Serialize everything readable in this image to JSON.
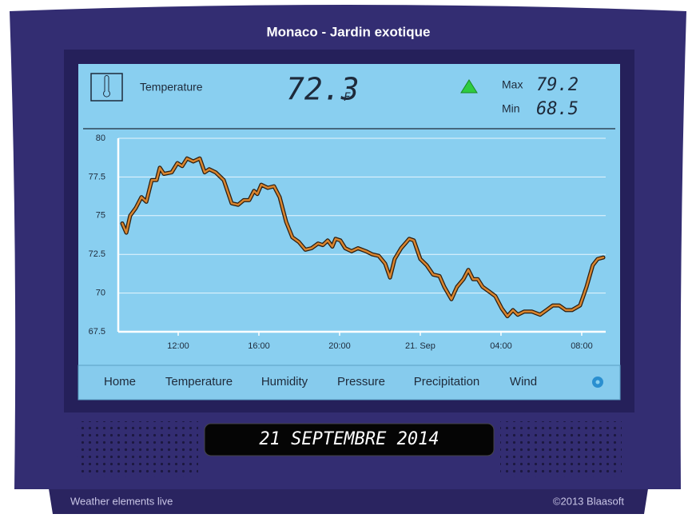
{
  "header": {
    "title": "Monaco - Jardin exotique"
  },
  "reading": {
    "label": "Temperature",
    "value": "72.3",
    "unit": "F",
    "max_label": "Max",
    "max": "79.2",
    "min_label": "Min",
    "min": "68.5"
  },
  "chart_data": {
    "type": "line",
    "x": [
      9.23,
      9.43,
      9.62,
      9.9,
      10.18,
      10.42,
      10.69,
      10.93,
      11.09,
      11.29,
      11.68,
      11.96,
      12.2,
      12.44,
      12.75,
      13.07,
      13.31,
      13.54,
      13.86,
      14.26,
      14.65,
      14.97,
      15.25,
      15.52,
      15.76,
      15.92,
      16.12,
      16.44,
      16.75,
      17.03,
      17.35,
      17.66,
      17.98,
      18.3,
      18.61,
      18.93,
      19.17,
      19.41,
      19.64,
      19.8,
      20.04,
      20.28,
      20.59,
      20.91,
      21.31,
      21.62,
      21.94,
      22.26,
      22.5,
      22.73,
      23.05,
      23.45,
      23.68,
      24.0,
      24.32,
      24.63,
      24.95,
      25.19,
      25.54,
      25.82,
      26.14,
      26.38,
      26.61,
      26.85,
      27.09,
      27.41,
      27.72,
      28.04,
      28.32,
      28.59,
      28.83,
      29.15,
      29.54,
      29.94,
      30.26,
      30.57,
      30.89,
      31.21,
      31.52,
      31.92,
      32.24,
      32.55,
      32.79,
      33.07
    ],
    "series": [
      {
        "color": "#d9852f",
        "values": [
          74.5,
          73.9,
          75.0,
          75.5,
          76.2,
          75.9,
          77.3,
          77.3,
          78.1,
          77.7,
          77.8,
          78.4,
          78.2,
          78.7,
          78.5,
          78.7,
          77.8,
          78.0,
          77.8,
          77.3,
          75.8,
          75.7,
          76.0,
          76.0,
          76.6,
          76.4,
          77.0,
          76.8,
          76.9,
          76.2,
          74.6,
          73.6,
          73.3,
          72.8,
          72.9,
          73.2,
          73.1,
          73.4,
          73.0,
          73.5,
          73.4,
          72.9,
          72.7,
          72.9,
          72.7,
          72.5,
          72.4,
          71.9,
          71.0,
          72.2,
          72.9,
          73.5,
          73.4,
          72.2,
          71.8,
          71.2,
          71.1,
          70.4,
          69.6,
          70.4,
          70.9,
          71.5,
          70.9,
          70.9,
          70.4,
          70.1,
          69.8,
          69.0,
          68.5,
          68.9,
          68.6,
          68.8,
          68.8,
          68.6,
          68.9,
          69.2,
          69.2,
          68.9,
          68.9,
          69.2,
          70.4,
          71.8,
          72.2,
          72.3
        ]
      }
    ],
    "xlim": [
      9.03,
      33.19
    ],
    "xticks": [
      {
        "value": 12,
        "label": "12:00"
      },
      {
        "value": 16,
        "label": "16:00"
      },
      {
        "value": 20,
        "label": "20:00"
      },
      {
        "value": 24,
        "label": "21. Sep"
      },
      {
        "value": 28,
        "label": "04:00"
      },
      {
        "value": 32,
        "label": "08:00"
      }
    ],
    "ylim": [
      67.5,
      80
    ],
    "yticks": [
      67.5,
      70,
      72.5,
      75,
      77.5,
      80
    ],
    "grid": true
  },
  "nav": {
    "items": [
      "Home",
      "Temperature",
      "Humidity",
      "Pressure",
      "Precipitation",
      "Wind"
    ]
  },
  "display": {
    "date": "21 SEPTEMBRE 2014"
  },
  "footer": {
    "left": "Weather elements live",
    "right": "©2013 Blaasoft"
  }
}
